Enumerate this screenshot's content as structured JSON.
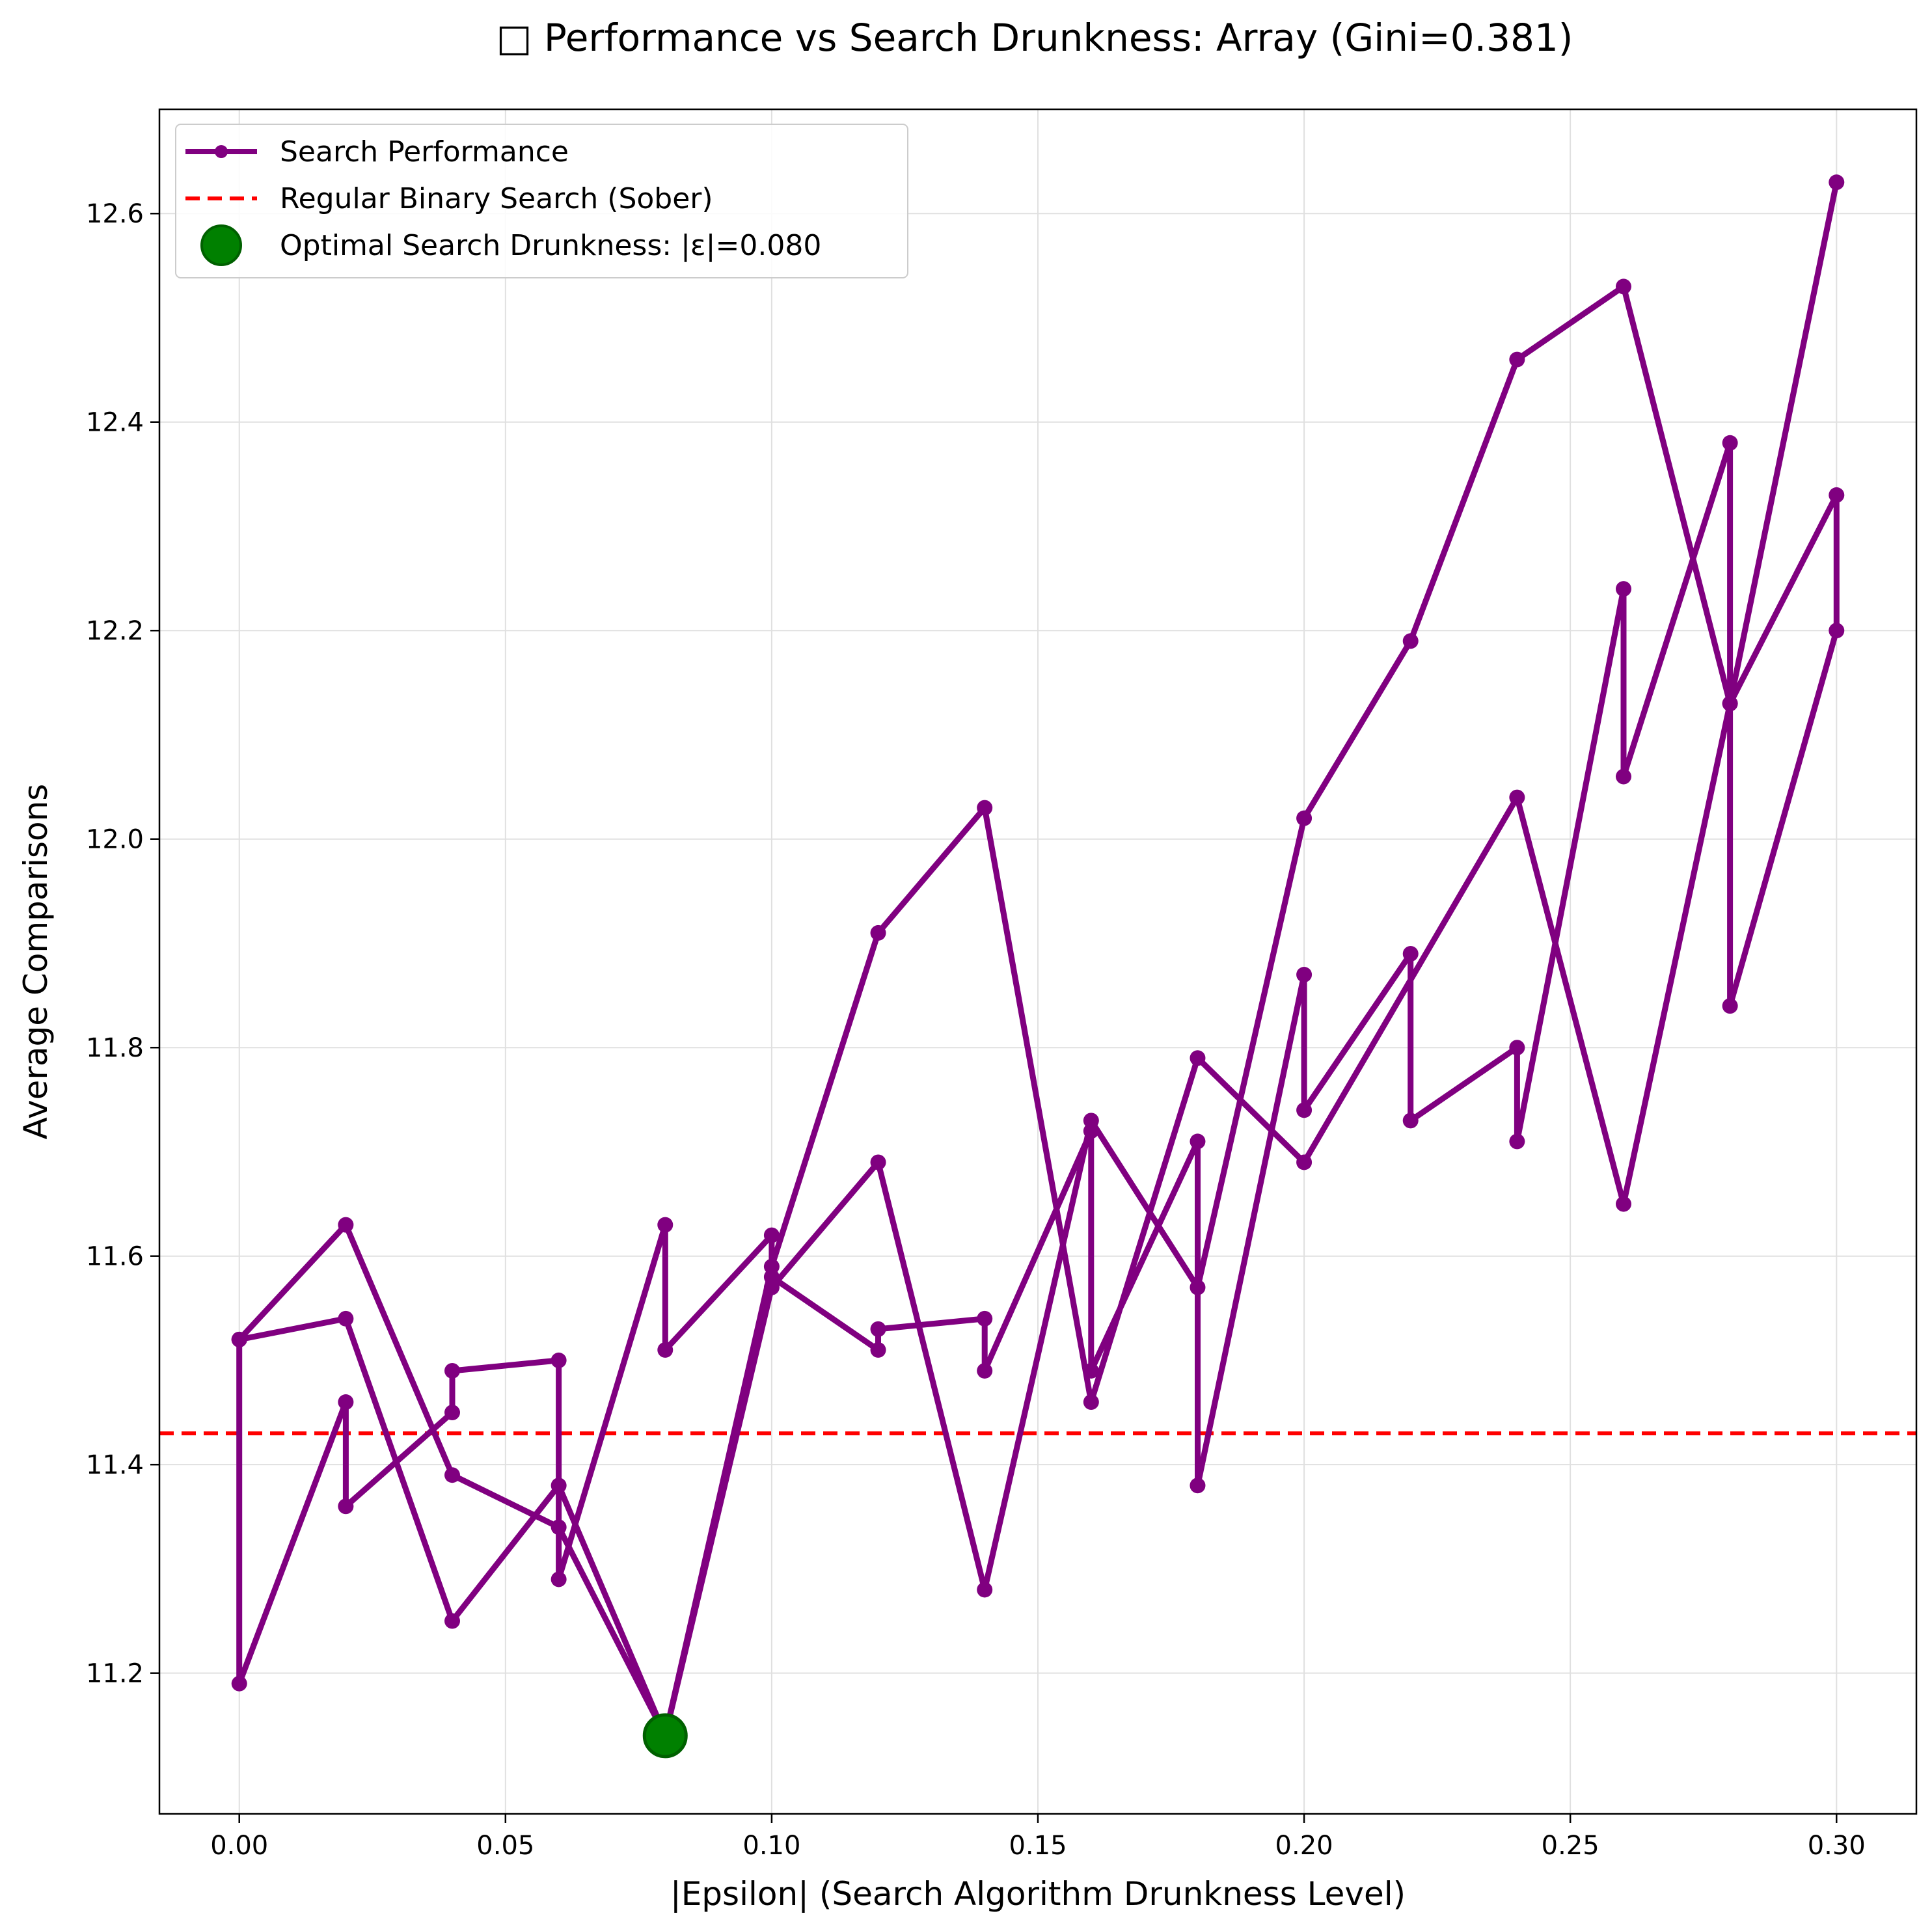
{
  "chart_data": {
    "type": "line",
    "title": "□ Performance vs Search Drunkness: Array (Gini=0.381)",
    "xlabel": "|Epsilon| (Search Algorithm Drunkness Level)",
    "ylabel": "Average Comparisons",
    "xlim": [
      -0.015,
      0.315
    ],
    "ylim": [
      11.065,
      12.7
    ],
    "xticks": [
      0.0,
      0.05,
      0.1,
      0.15,
      0.2,
      0.25,
      0.3
    ],
    "xtick_labels": [
      "0.00",
      "0.05",
      "0.10",
      "0.15",
      "0.20",
      "0.25",
      "0.30"
    ],
    "yticks": [
      11.2,
      11.4,
      11.6,
      11.8,
      12.0,
      12.2,
      12.4,
      12.6
    ],
    "ytick_labels": [
      "11.2",
      "11.4",
      "11.6",
      "11.8",
      "12.0",
      "12.2",
      "12.4",
      "12.6"
    ],
    "grid": true,
    "legend_position": "top-left",
    "series": [
      {
        "name": "Search Performance",
        "color": "#800080",
        "marker": "circle",
        "x": [
          0.0,
          0.0,
          0.02,
          0.02,
          0.04,
          0.04,
          0.06,
          0.06,
          0.08,
          0.08,
          0.1,
          0.1,
          0.12,
          0.12,
          0.14,
          0.14,
          0.16,
          0.16,
          0.18,
          0.18,
          0.2,
          0.2,
          0.22,
          0.22,
          0.24,
          0.24,
          0.26,
          0.26,
          0.28,
          0.28,
          0.3,
          0.3,
          0.28,
          0.26,
          0.24,
          0.2,
          0.18,
          0.16,
          0.14,
          0.12,
          0.1,
          0.08,
          0.06,
          0.04,
          0.02,
          0.0,
          0.0,
          0.02,
          0.04,
          0.06,
          0.08,
          0.1,
          0.12,
          0.14,
          0.16,
          0.18,
          0.2,
          0.22,
          0.24,
          0.26,
          0.28,
          0.3
        ],
        "y": [
          11.52,
          11.19,
          11.46,
          11.36,
          11.45,
          11.49,
          11.5,
          11.29,
          11.63,
          11.51,
          11.62,
          11.58,
          11.51,
          11.53,
          11.54,
          11.49,
          11.72,
          11.49,
          11.71,
          11.38,
          11.87,
          11.74,
          11.89,
          11.73,
          11.8,
          11.71,
          12.24,
          12.06,
          12.38,
          11.84,
          12.2,
          12.33,
          12.13,
          11.65,
          12.04,
          11.69,
          11.79,
          11.46,
          12.03,
          11.91,
          11.59,
          11.14,
          11.34,
          11.39,
          11.63,
          11.52,
          11.52,
          11.54,
          11.25,
          11.38,
          11.14,
          11.57,
          11.69,
          11.28,
          11.73,
          11.57,
          12.02,
          12.19,
          12.46,
          12.53,
          12.13,
          12.63
        ]
      },
      {
        "name": "Regular Binary Search (Sober)",
        "color": "#ff0000",
        "style": "dashed",
        "y": 11.43
      },
      {
        "name": "Optimal Search Drunkness: |ε|=0.080",
        "color": "#008000",
        "marker": "large-circle",
        "x": [
          0.08
        ],
        "y": [
          11.14
        ]
      }
    ]
  }
}
